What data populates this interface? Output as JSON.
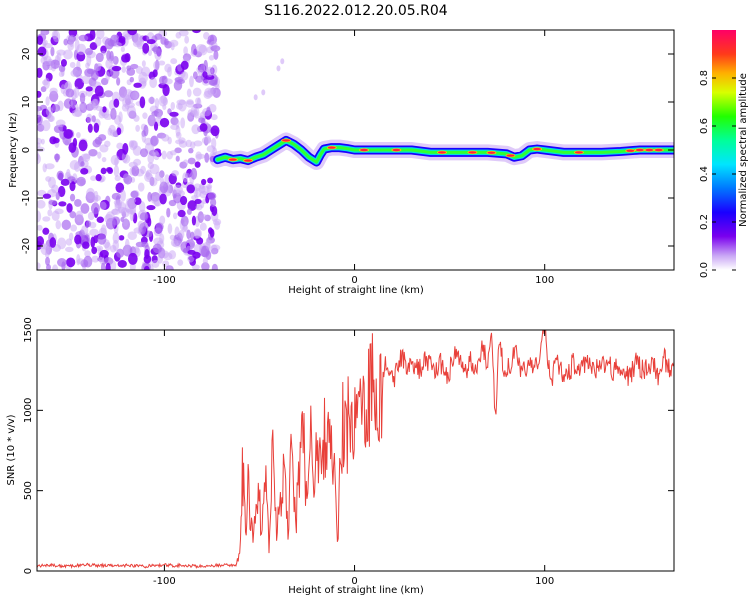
{
  "chart_data": [
    {
      "type": "heatmap",
      "title": "S116.2022.012.20.05.R04",
      "xlabel": "Height of straight line (km)",
      "ylabel": "Frequency (Hz)",
      "xlim": [
        -167,
        168
      ],
      "ylim": [
        -25,
        25
      ],
      "xticks": [
        -100,
        0,
        100
      ],
      "yticks": [
        -20,
        -10,
        0,
        10,
        20
      ],
      "noise_region_x": [
        -167,
        -72
      ],
      "ridge": {
        "x": [
          -72,
          -68,
          -64,
          -60,
          -56,
          -52,
          -48,
          -44,
          -40,
          -36,
          -32,
          -28,
          -24,
          -20,
          -18,
          -16,
          -12,
          -8,
          -4,
          0,
          10,
          20,
          30,
          40,
          50,
          60,
          70,
          80,
          84,
          88,
          92,
          96,
          100,
          110,
          120,
          130,
          140,
          150,
          160,
          168
        ],
        "freq": [
          -2,
          -1.5,
          -2,
          -1.8,
          -2.2,
          -1.5,
          -1,
          0,
          1,
          2,
          1.2,
          0,
          -1.5,
          -2.5,
          -1,
          0.2,
          0.5,
          0.5,
          0.3,
          0,
          0,
          0,
          0,
          -0.5,
          -0.5,
          -0.5,
          -0.5,
          -0.8,
          -1.5,
          -1.2,
          0,
          0.2,
          0,
          -0.5,
          -0.5,
          -0.5,
          -0.3,
          0,
          0,
          0
        ]
      },
      "colorbar": {
        "label": "Normalized spectral amplitude",
        "ticks": [
          0.0,
          0.2,
          0.4,
          0.6,
          0.8
        ],
        "range": [
          0,
          1
        ]
      },
      "colors": {
        "noise": "#7a00ee",
        "ridge_outer": "#1a00ff",
        "ridge_mid": "#00e0e0",
        "ridge_inner": "#30ff30",
        "ridge_peak": "#ff2040"
      }
    },
    {
      "type": "line",
      "xlabel": "Height of straight line (km)",
      "ylabel": "SNR (10 * v/v)",
      "xlim": [
        -167,
        168
      ],
      "ylim": [
        0,
        1500
      ],
      "xticks": [
        -100,
        0,
        100
      ],
      "yticks": [
        0,
        500,
        1000,
        1500
      ],
      "line_color": "#e8403a",
      "series": [
        {
          "x": [
            -167,
            -160,
            -150,
            -140,
            -130,
            -120,
            -110,
            -100,
            -90,
            -80,
            -70,
            -62,
            -60,
            -59,
            -58,
            -57,
            -56,
            -55,
            -53,
            -51,
            -49,
            -47,
            -45,
            -43,
            -41,
            -39,
            -37,
            -35,
            -33,
            -31,
            -29,
            -27,
            -25,
            -23,
            -21,
            -19,
            -17,
            -15,
            -13,
            -11,
            -9,
            -7,
            -5,
            -3,
            -1,
            1,
            3,
            5,
            7,
            9,
            11,
            13,
            15,
            17,
            19,
            21,
            23,
            25,
            28,
            31,
            34,
            37,
            40,
            43,
            46,
            49,
            52,
            55,
            58,
            61,
            64,
            67,
            70,
            72,
            74,
            76,
            79,
            82,
            85,
            88,
            91,
            94,
            97,
            100,
            103,
            106,
            109,
            112,
            115,
            118,
            121,
            124,
            127,
            130,
            133,
            136,
            139,
            142,
            145,
            148,
            151,
            154,
            157,
            160,
            163,
            166,
            168
          ],
          "values": [
            30,
            35,
            30,
            38,
            32,
            35,
            30,
            36,
            33,
            30,
            35,
            40,
            150,
            680,
            480,
            250,
            550,
            350,
            200,
            520,
            280,
            600,
            150,
            750,
            200,
            450,
            650,
            300,
            800,
            250,
            700,
            850,
            400,
            900,
            600,
            750,
            950,
            700,
            800,
            820,
            150,
            900,
            850,
            950,
            900,
            1050,
            1000,
            1100,
            1050,
            1150,
            1200,
            1150,
            1250,
            1300,
            1250,
            1200,
            1300,
            1350,
            1250,
            1300,
            1250,
            1300,
            1280,
            1250,
            1300,
            1200,
            1350,
            1300,
            1250,
            1300,
            1250,
            1400,
            1300,
            1550,
            950,
            1400,
            1250,
            1300,
            1350,
            1200,
            1300,
            1250,
            1300,
            1550,
            1150,
            1300,
            1250,
            1200,
            1300,
            1250,
            1280,
            1300,
            1250,
            1280,
            1300,
            1250,
            1280,
            1250,
            1200,
            1300,
            1250,
            1280,
            1300,
            1200,
            1320,
            1250,
            1300
          ]
        }
      ]
    }
  ]
}
